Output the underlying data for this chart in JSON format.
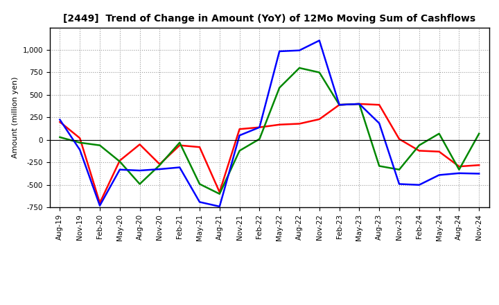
{
  "title": "[2449]  Trend of Change in Amount (YoY) of 12Mo Moving Sum of Cashflows",
  "ylabel": "Amount (million yen)",
  "x_labels": [
    "Aug-19",
    "Nov-19",
    "Feb-20",
    "May-20",
    "Aug-20",
    "Nov-20",
    "Feb-21",
    "May-21",
    "Aug-21",
    "Nov-21",
    "Feb-22",
    "May-22",
    "Aug-22",
    "Nov-22",
    "Feb-23",
    "May-23",
    "Aug-23",
    "Nov-23",
    "Feb-24",
    "May-24",
    "Aug-24",
    "Nov-24"
  ],
  "operating": [
    200,
    20,
    -700,
    -230,
    -50,
    -270,
    -60,
    -80,
    -580,
    120,
    140,
    170,
    180,
    230,
    390,
    400,
    390,
    10,
    -120,
    -130,
    -295,
    -280
  ],
  "investing": [
    30,
    -30,
    -60,
    -240,
    -490,
    -280,
    -30,
    -490,
    -600,
    -120,
    10,
    580,
    800,
    750,
    390,
    400,
    -290,
    -330,
    -60,
    70,
    -330,
    70
  ],
  "free": [
    225,
    -110,
    -730,
    -330,
    -340,
    -325,
    -305,
    -690,
    -740,
    50,
    140,
    985,
    995,
    1105,
    390,
    400,
    185,
    -490,
    -500,
    -390,
    -370,
    -375
  ],
  "ylim": [
    -750,
    1250
  ],
  "yticks": [
    -750,
    -500,
    -250,
    0,
    250,
    500,
    750,
    1000
  ],
  "operating_color": "#ff0000",
  "investing_color": "#008800",
  "free_color": "#0000ff",
  "background_color": "#ffffff",
  "grid_color": "#999999",
  "line_width": 1.8,
  "title_fontsize": 10,
  "axis_label_fontsize": 8,
  "tick_fontsize": 7.5,
  "legend_fontsize": 8.5
}
